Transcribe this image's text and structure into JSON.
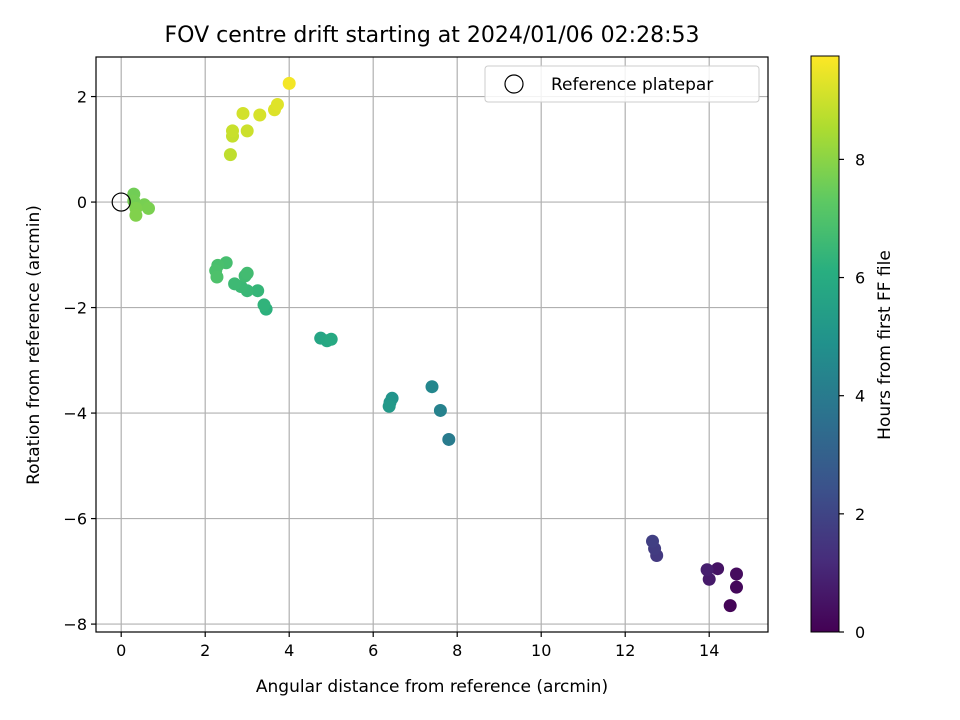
{
  "chart_data": {
    "type": "scatter",
    "title": "FOV centre drift starting at 2024/01/06 02:28:53",
    "xlabel": "Angular distance from reference (arcmin)",
    "ylabel": "Rotation from reference (arcmin)",
    "xlim": [
      -0.6,
      15.4
    ],
    "ylim": [
      -8.15,
      2.75
    ],
    "xticks": [
      0,
      2,
      4,
      6,
      8,
      10,
      12,
      14
    ],
    "yticks": [
      -8,
      -6,
      -4,
      -2,
      0,
      2
    ],
    "grid": true,
    "legend": {
      "position": "top-right",
      "label": "Reference platepar"
    },
    "reference_point": {
      "x": 0,
      "y": 0
    },
    "colorbar": {
      "label": "Hours from first FF file",
      "range": [
        0,
        9.75
      ],
      "ticks": [
        0,
        2,
        4,
        6,
        8
      ],
      "colormap": "viridis"
    },
    "points": [
      {
        "x": 14.5,
        "y": -7.65,
        "h": 0.1
      },
      {
        "x": 14.65,
        "y": -7.3,
        "h": 0.2
      },
      {
        "x": 14.65,
        "y": -7.05,
        "h": 0.3
      },
      {
        "x": 14.2,
        "y": -6.95,
        "h": 0.5
      },
      {
        "x": 14.0,
        "y": -7.15,
        "h": 0.7
      },
      {
        "x": 13.95,
        "y": -6.97,
        "h": 0.8
      },
      {
        "x": 12.75,
        "y": -6.7,
        "h": 1.6
      },
      {
        "x": 12.7,
        "y": -6.57,
        "h": 1.7
      },
      {
        "x": 12.65,
        "y": -6.43,
        "h": 1.8
      },
      {
        "x": 7.8,
        "y": -4.5,
        "h": 4.0
      },
      {
        "x": 7.6,
        "y": -3.95,
        "h": 4.3
      },
      {
        "x": 7.4,
        "y": -3.5,
        "h": 4.5
      },
      {
        "x": 6.45,
        "y": -3.72,
        "h": 5.0
      },
      {
        "x": 6.4,
        "y": -3.8,
        "h": 5.1
      },
      {
        "x": 6.38,
        "y": -3.87,
        "h": 5.2
      },
      {
        "x": 4.75,
        "y": -2.58,
        "h": 5.7
      },
      {
        "x": 4.9,
        "y": -2.63,
        "h": 5.8
      },
      {
        "x": 5.0,
        "y": -2.6,
        "h": 5.9
      },
      {
        "x": 3.45,
        "y": -2.03,
        "h": 6.2
      },
      {
        "x": 3.4,
        "y": -1.95,
        "h": 6.3
      },
      {
        "x": 3.25,
        "y": -1.68,
        "h": 6.4
      },
      {
        "x": 3.0,
        "y": -1.68,
        "h": 6.5
      },
      {
        "x": 2.85,
        "y": -1.6,
        "h": 6.55
      },
      {
        "x": 2.7,
        "y": -1.55,
        "h": 6.6
      },
      {
        "x": 2.95,
        "y": -1.4,
        "h": 6.65
      },
      {
        "x": 3.0,
        "y": -1.35,
        "h": 6.7
      },
      {
        "x": 2.5,
        "y": -1.15,
        "h": 6.8
      },
      {
        "x": 2.3,
        "y": -1.2,
        "h": 6.85
      },
      {
        "x": 2.25,
        "y": -1.3,
        "h": 6.9
      },
      {
        "x": 2.28,
        "y": -1.42,
        "h": 6.95
      },
      {
        "x": 0.3,
        "y": 0.15,
        "h": 7.6
      },
      {
        "x": 0.3,
        "y": 0.02,
        "h": 7.65
      },
      {
        "x": 0.55,
        "y": -0.05,
        "h": 7.7
      },
      {
        "x": 0.65,
        "y": -0.12,
        "h": 7.75
      },
      {
        "x": 0.35,
        "y": -0.12,
        "h": 7.8
      },
      {
        "x": 0.35,
        "y": -0.25,
        "h": 7.85
      },
      {
        "x": 2.6,
        "y": 0.9,
        "h": 8.8
      },
      {
        "x": 2.65,
        "y": 1.25,
        "h": 8.9
      },
      {
        "x": 2.65,
        "y": 1.35,
        "h": 8.95
      },
      {
        "x": 3.0,
        "y": 1.35,
        "h": 9.0
      },
      {
        "x": 2.9,
        "y": 1.68,
        "h": 9.1
      },
      {
        "x": 3.3,
        "y": 1.65,
        "h": 9.15
      },
      {
        "x": 3.65,
        "y": 1.75,
        "h": 9.25
      },
      {
        "x": 3.72,
        "y": 1.85,
        "h": 9.3
      },
      {
        "x": 4.0,
        "y": 2.25,
        "h": 9.6
      }
    ]
  }
}
